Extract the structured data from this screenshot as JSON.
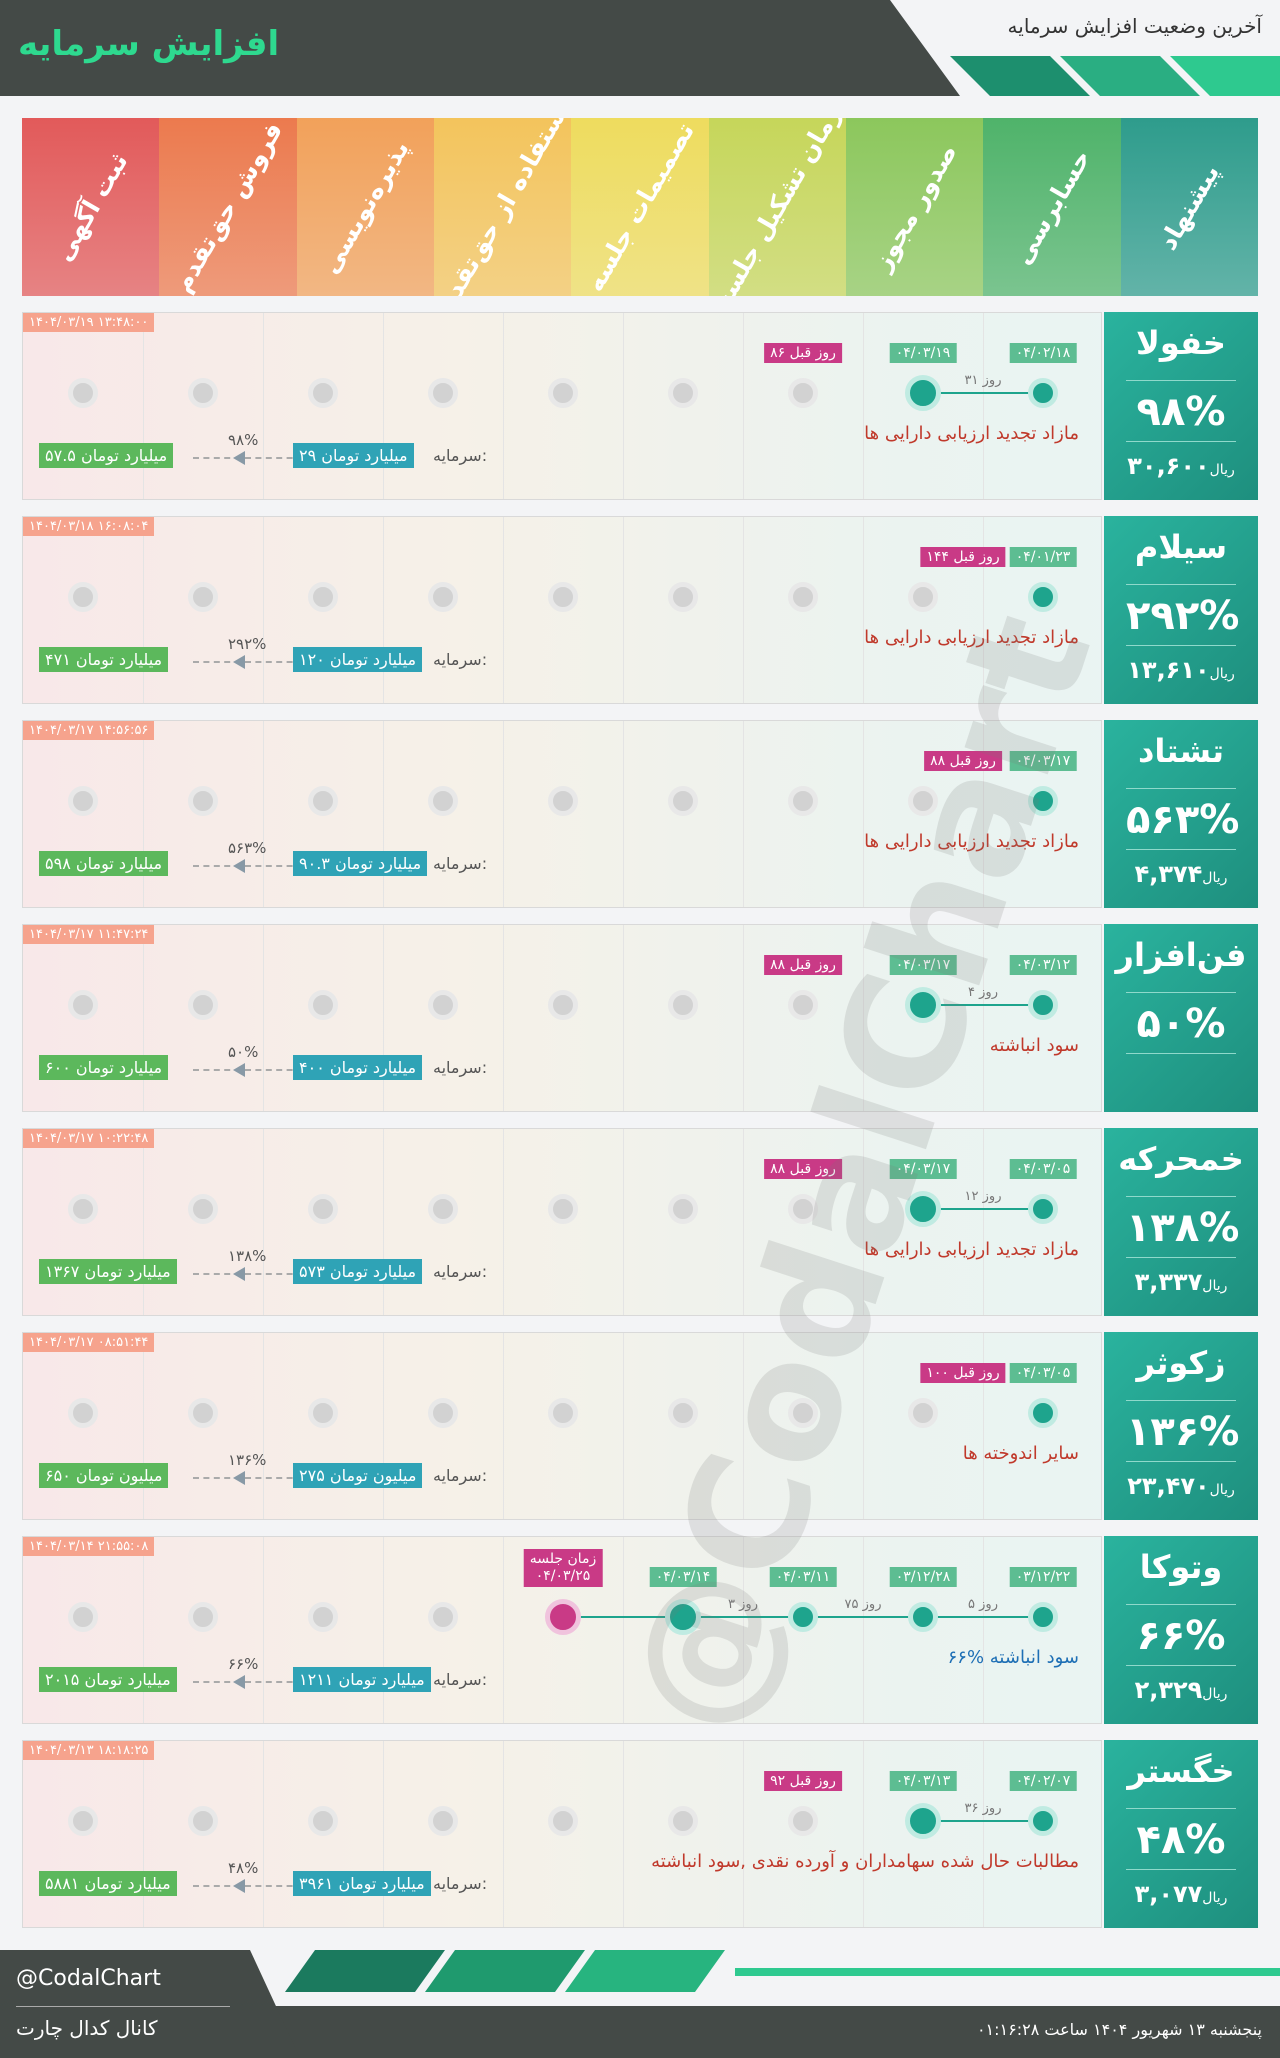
{
  "header": {
    "title": "افزایش سرمایه",
    "subtitle": "آخرین وضعیت افزایش سرمایه"
  },
  "stages": [
    {
      "label": "ثبت آگهی",
      "color": "#e25a5a"
    },
    {
      "label": "فروش حق‌تقدم",
      "color": "#ec7a4e"
    },
    {
      "label": "پذیره‌نویسی",
      "color": "#f2a15a"
    },
    {
      "label": "استفاده از حق‌تقدم",
      "color": "#f3c45c"
    },
    {
      "label": "تصمیمات جلسه",
      "color": "#eedc5e"
    },
    {
      "label": "زمان تشکیل جلسه",
      "color": "#c6d65a"
    },
    {
      "label": "صدور مجوز",
      "color": "#8cc75c"
    },
    {
      "label": "حسابرسی",
      "color": "#4fb36a"
    },
    {
      "label": "پیشنهاد",
      "color": "#2e9c8c"
    }
  ],
  "capital_label": "سرمایه:",
  "price_unit": "ریال",
  "companies": [
    {
      "symbol": "خفولا",
      "change": "۹۸%",
      "price": "۳۰,۶۰۰",
      "timestamp": "۱۴۰۴/۰۳/۱۹ ۱۳:۴۸:۰۰",
      "reason": "مازاد تجدید ارزیابی دارایی ها",
      "reason_style": "red",
      "capital": "۲۹ میلیارد تومان",
      "new_capital": "۵۷.۵ میلیارد تومان",
      "pct": "۹۸%",
      "steps": [
        {
          "stage": 9,
          "date": "۰۴/۰۲/۱۸"
        },
        {
          "stage": 8,
          "date": "۰۴/۰۳/۱۹",
          "gap": "۳۱ روز"
        }
      ],
      "ago": "۸۶ روز قبل"
    },
    {
      "symbol": "سیلام",
      "change": "۲۹۲%",
      "price": "۱۳,۶۱۰",
      "timestamp": "۱۴۰۴/۰۳/۱۸ ۱۶:۰۸:۰۴",
      "reason": "مازاد تجدید ارزیابی دارایی ها",
      "reason_style": "red",
      "capital": "۱۲۰ میلیارد تومان",
      "new_capital": "۴۷۱ میلیارد تومان",
      "pct": "۲۹۲%",
      "steps": [
        {
          "stage": 9,
          "date": "۰۴/۰۱/۲۳"
        }
      ],
      "ago": "۱۴۴ روز قبل"
    },
    {
      "symbol": "تشتاد",
      "change": "۵۶۳%",
      "price": "۴,۳۷۴",
      "timestamp": "۱۴۰۴/۰۳/۱۷ ۱۴:۵۶:۵۶",
      "reason": "مازاد تجدید ارزیابی دارایی ها",
      "reason_style": "red",
      "capital": "۹۰.۳ میلیارد تومان",
      "new_capital": "۵۹۸ میلیارد تومان",
      "pct": "۵۶۳%",
      "steps": [
        {
          "stage": 9,
          "date": "۰۴/۰۳/۱۷"
        }
      ],
      "ago": "۸۸ روز قبل"
    },
    {
      "symbol": "فن‌افزار",
      "change": "۵۰%",
      "price": "",
      "timestamp": "۱۴۰۴/۰۳/۱۷ ۱۱:۴۷:۲۴",
      "reason": "سود انباشته",
      "reason_style": "red",
      "capital": "۴۰۰ میلیارد تومان",
      "new_capital": "۶۰۰ میلیارد تومان",
      "pct": "۵۰%",
      "steps": [
        {
          "stage": 9,
          "date": "۰۴/۰۳/۱۲"
        },
        {
          "stage": 8,
          "date": "۰۴/۰۳/۱۷",
          "gap": "۴ روز"
        }
      ],
      "ago": "۸۸ روز قبل"
    },
    {
      "symbol": "خمحرکه",
      "change": "۱۳۸%",
      "price": "۳,۳۳۷",
      "timestamp": "۱۴۰۴/۰۳/۱۷ ۱۰:۲۲:۴۸",
      "reason": "مازاد تجدید ارزیابی دارایی ها",
      "reason_style": "red",
      "capital": "۵۷۳ میلیارد تومان",
      "new_capital": "۱۳۶۷ میلیارد تومان",
      "pct": "۱۳۸%",
      "steps": [
        {
          "stage": 9,
          "date": "۰۴/۰۳/۰۵"
        },
        {
          "stage": 8,
          "date": "۰۴/۰۳/۱۷",
          "gap": "۱۲ روز"
        }
      ],
      "ago": "۸۸ روز قبل"
    },
    {
      "symbol": "زکوثر",
      "change": "۱۳۶%",
      "price": "۲۳,۴۷۰",
      "timestamp": "۱۴۰۴/۰۳/۱۷ ۰۸:۵۱:۴۴",
      "reason": "سایر اندوخته ها",
      "reason_style": "red",
      "capital": "۲۷۵ میلیون تومان",
      "new_capital": "۶۵۰ میلیون تومان",
      "pct": "۱۳۶%",
      "steps": [
        {
          "stage": 9,
          "date": "۰۴/۰۳/۰۵"
        }
      ],
      "ago": "۱۰۰ روز قبل"
    },
    {
      "symbol": "وتوکا",
      "change": "۶۶%",
      "price": "۲,۳۲۹",
      "timestamp": "۱۴۰۴/۰۳/۱۴ ۲۱:۵۵:۰۸",
      "reason": "۶۶% سود انباشته",
      "reason_style": "blue",
      "capital": "۱۲۱۱ میلیارد تومان",
      "new_capital": "۲۰۱۵ میلیارد تومان",
      "pct": "۶۶%",
      "steps": [
        {
          "stage": 9,
          "date": "۰۳/۱۲/۲۲"
        },
        {
          "stage": 8,
          "date": "۰۳/۱۲/۲۸",
          "gap": "۵ روز"
        },
        {
          "stage": 7,
          "date": "۰۴/۰۳/۱۱",
          "gap": "۷۵ روز"
        },
        {
          "stage": 6,
          "date": "۰۴/۰۳/۱۴",
          "gap": "۳ روز"
        }
      ],
      "meeting": {
        "label": "زمان جلسه",
        "date": "۰۴/۰۳/۲۵"
      },
      "ago": ""
    },
    {
      "symbol": "خگستر",
      "change": "۴۸%",
      "price": "۳,۰۷۷",
      "timestamp": "۱۴۰۴/۰۳/۱۳ ۱۸:۱۸:۲۵",
      "reason": "مطالبات حال شده سهامداران و آورده نقدی ,سود انباشته",
      "reason_style": "red",
      "capital": "۳۹۶۱ میلیارد تومان",
      "new_capital": "۵۸۸۱ میلیارد تومان",
      "pct": "۴۸%",
      "steps": [
        {
          "stage": 9,
          "date": "۰۴/۰۲/۰۷"
        },
        {
          "stage": 8,
          "date": "۰۴/۰۳/۱۳",
          "gap": "۳۶ روز"
        }
      ],
      "ago": "۹۲ روز قبل"
    }
  ],
  "watermark": "@CodalChart",
  "footer": {
    "handle": "@CodalChart",
    "channel": "کانال کدال چارت",
    "datetime": "پنجشنبه ۱۳ شهریور ۱۴۰۴ ساعت ۰۱:۱۶:۲۸"
  }
}
